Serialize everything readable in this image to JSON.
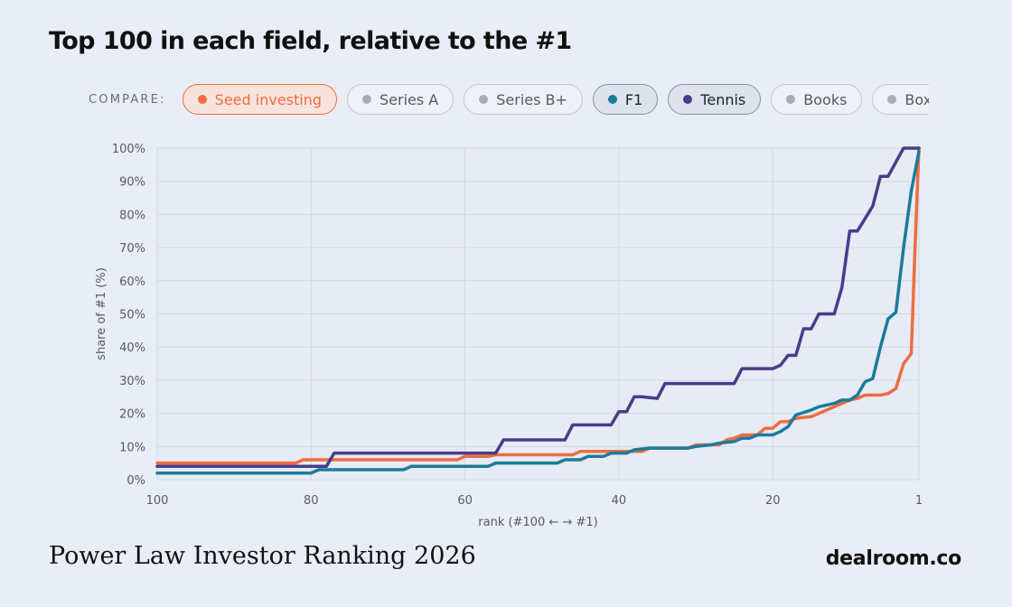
{
  "title": "Top 100 in each field, relative to the #1",
  "compare": {
    "label": "COMPARE:",
    "options": [
      {
        "label": "Seed investing",
        "color": "#ee6d42",
        "state": "seed"
      },
      {
        "label": "Series A",
        "color": "#a9acb3",
        "state": "off"
      },
      {
        "label": "Series B+",
        "color": "#a9acb3",
        "state": "off"
      },
      {
        "label": "F1",
        "color": "#1b7b9b",
        "state": "active"
      },
      {
        "label": "Tennis",
        "color": "#4a3c8c",
        "state": "active"
      },
      {
        "label": "Books",
        "color": "#a9acb3",
        "state": "off"
      },
      {
        "label": "Box-office",
        "color": "#a9acb3",
        "state": "off"
      }
    ]
  },
  "footer": {
    "left": "Power Law Investor Ranking 2026",
    "right": "dealroom.co"
  },
  "chart_data": {
    "type": "line",
    "xlabel": "rank (#100 ← → #1)",
    "ylabel": "share of #1 (%)",
    "xlim": [
      100,
      1
    ],
    "ylim": [
      0,
      100
    ],
    "x_ticks": [
      100,
      80,
      60,
      40,
      20,
      1
    ],
    "x_tick_labels": [
      "100",
      "80",
      "60",
      "40",
      "20",
      "1"
    ],
    "y_ticks": [
      0,
      10,
      20,
      30,
      40,
      50,
      60,
      70,
      80,
      90,
      100
    ],
    "y_tick_labels": [
      "0%",
      "10%",
      "20%",
      "30%",
      "40%",
      "50%",
      "60%",
      "70%",
      "80%",
      "90%",
      "100%"
    ],
    "grid": true,
    "series": [
      {
        "name": "Seed investing",
        "color": "#ee6d42",
        "points": [
          [
            100,
            5
          ],
          [
            82,
            5
          ],
          [
            81,
            6
          ],
          [
            61,
            6
          ],
          [
            60,
            7
          ],
          [
            57,
            7
          ],
          [
            56,
            7.5
          ],
          [
            46,
            7.5
          ],
          [
            45,
            8.5
          ],
          [
            37,
            8.5
          ],
          [
            36,
            9.5
          ],
          [
            31,
            9.5
          ],
          [
            30,
            10.5
          ],
          [
            27,
            10.5
          ],
          [
            26,
            12
          ],
          [
            25,
            12.5
          ],
          [
            24,
            13.5
          ],
          [
            22,
            13.5
          ],
          [
            21,
            15.5
          ],
          [
            20,
            15.5
          ],
          [
            19,
            17.5
          ],
          [
            18,
            17.5
          ],
          [
            17,
            18.5
          ],
          [
            15,
            19
          ],
          [
            14,
            20
          ],
          [
            12,
            22
          ],
          [
            10,
            24
          ],
          [
            9,
            24.5
          ],
          [
            8,
            25.5
          ],
          [
            6,
            25.5
          ],
          [
            5,
            26
          ],
          [
            4,
            27.5
          ],
          [
            3,
            35
          ],
          [
            2,
            38
          ],
          [
            1.5,
            70
          ],
          [
            1,
            100
          ]
        ]
      },
      {
        "name": "F1",
        "color": "#1b7b9b",
        "points": [
          [
            100,
            2
          ],
          [
            80,
            2
          ],
          [
            79,
            3
          ],
          [
            68,
            3
          ],
          [
            67,
            4
          ],
          [
            57,
            4
          ],
          [
            56,
            5
          ],
          [
            48,
            5
          ],
          [
            47,
            6
          ],
          [
            45,
            6
          ],
          [
            44,
            7
          ],
          [
            42,
            7
          ],
          [
            41,
            8
          ],
          [
            39,
            8
          ],
          [
            38,
            9
          ],
          [
            36,
            9.5
          ],
          [
            31,
            9.5
          ],
          [
            30,
            10
          ],
          [
            28,
            10.5
          ],
          [
            27,
            11
          ],
          [
            25,
            11.5
          ],
          [
            24,
            12.5
          ],
          [
            23,
            12.5
          ],
          [
            22,
            13.5
          ],
          [
            20,
            13.5
          ],
          [
            19,
            14.5
          ],
          [
            18,
            16
          ],
          [
            17,
            19.5
          ],
          [
            15,
            21
          ],
          [
            14,
            22
          ],
          [
            12,
            23
          ],
          [
            11,
            24
          ],
          [
            10,
            24
          ],
          [
            9,
            25.5
          ],
          [
            8,
            29.5
          ],
          [
            7,
            30.5
          ],
          [
            6,
            40
          ],
          [
            5,
            48.5
          ],
          [
            4,
            50.5
          ],
          [
            3,
            70
          ],
          [
            2,
            87
          ],
          [
            1,
            99
          ]
        ]
      },
      {
        "name": "Tennis",
        "color": "#4a3c8c",
        "points": [
          [
            100,
            4
          ],
          [
            78,
            4
          ],
          [
            77,
            8
          ],
          [
            56,
            8
          ],
          [
            55,
            12
          ],
          [
            47,
            12
          ],
          [
            46,
            16.5
          ],
          [
            41,
            16.5
          ],
          [
            40,
            20.5
          ],
          [
            39,
            20.5
          ],
          [
            38,
            25
          ],
          [
            37,
            25
          ],
          [
            35,
            24.5
          ],
          [
            34,
            29
          ],
          [
            25,
            29
          ],
          [
            24,
            33.5
          ],
          [
            20,
            33.5
          ],
          [
            19,
            34.5
          ],
          [
            18,
            37.5
          ],
          [
            17,
            37.5
          ],
          [
            16,
            45.5
          ],
          [
            15,
            45.5
          ],
          [
            14,
            50
          ],
          [
            12,
            50
          ],
          [
            11,
            58
          ],
          [
            10,
            75
          ],
          [
            9,
            75
          ],
          [
            7,
            82.5
          ],
          [
            6,
            91.5
          ],
          [
            5,
            91.5
          ],
          [
            3,
            100
          ],
          [
            2,
            100
          ],
          [
            1,
            100
          ]
        ]
      }
    ]
  }
}
